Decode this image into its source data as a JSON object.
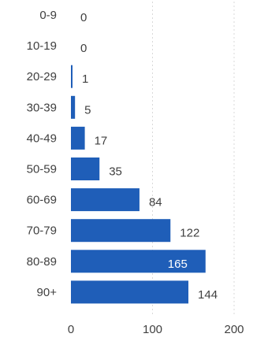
{
  "chart_data": {
    "type": "bar",
    "orientation": "horizontal",
    "categories": [
      "0-9",
      "10-19",
      "20-29",
      "30-39",
      "40-49",
      "50-59",
      "60-69",
      "70-79",
      "80-89",
      "90+"
    ],
    "values": [
      0,
      0,
      1,
      5,
      17,
      35,
      84,
      122,
      165,
      144
    ],
    "xlim": [
      0,
      200
    ],
    "xticks": [
      0,
      100,
      200
    ],
    "grid": "vertical-dotted",
    "bar_color": "#1f5eb8",
    "title": "",
    "xlabel": "",
    "ylabel": ""
  }
}
